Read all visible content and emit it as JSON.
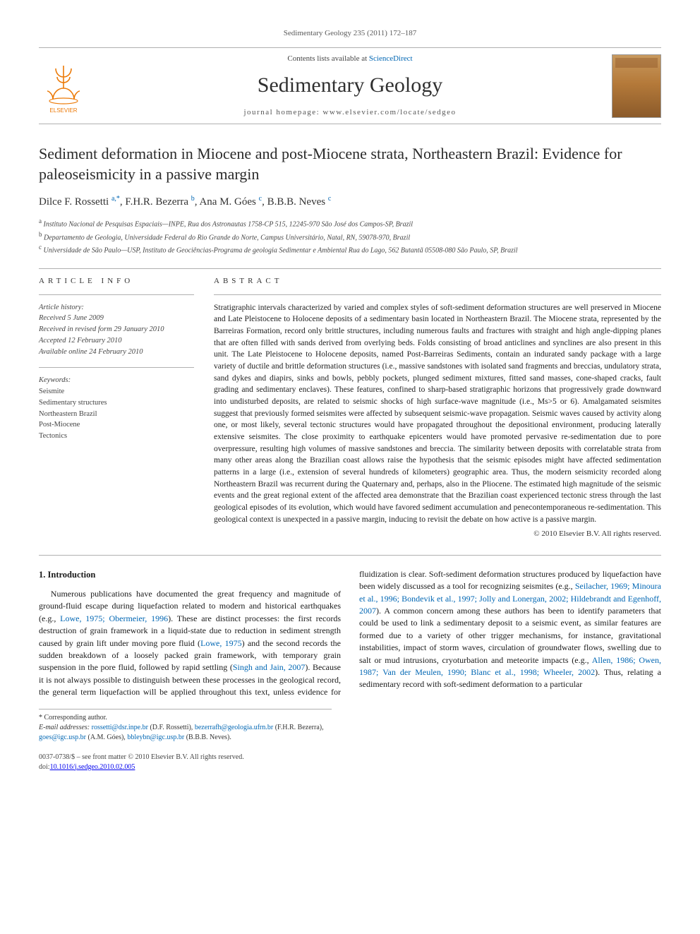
{
  "running_head": "Sedimentary Geology 235 (2011) 172–187",
  "banner": {
    "contents_pre": "Contents lists available at ",
    "contents_link": "ScienceDirect",
    "journal": "Sedimentary Geology",
    "homepage_pre": "journal homepage: ",
    "homepage_url": "www.elsevier.com/locate/sedgeo"
  },
  "title": "Sediment deformation in Miocene and post-Miocene strata, Northeastern Brazil: Evidence for paleoseismicity in a passive margin",
  "authors_html": "Dilce F. Rossetti <span class='sup'>a,</span><span class='sup star'>*</span>, F.H.R. Bezerra <span class='sup'>b</span>, Ana M. Góes <span class='sup'>c</span>, B.B.B. Neves <span class='sup'>c</span>",
  "affiliations": [
    {
      "sup": "a",
      "text": "Instituto Nacional de Pesquisas Espaciais—INPE, Rua dos Astronautas 1758-CP 515, 12245-970 São José dos Campos-SP, Brazil"
    },
    {
      "sup": "b",
      "text": "Departamento de Geologia, Universidade Federal do Rio Grande do Norte, Campus Universitário, Natal, RN, 59078-970, Brazil"
    },
    {
      "sup": "c",
      "text": "Universidade de São Paulo—USP, Instituto de Geociências-Programa de geologia Sedimentar e Ambiental Rua do Lago, 562 Butantã 05508-080 São Paulo, SP, Brazil"
    }
  ],
  "article_info_label": "ARTICLE INFO",
  "abstract_label": "ABSTRACT",
  "history": {
    "hdr": "Article history:",
    "lines": [
      "Received 5 June 2009",
      "Received in revised form 29 January 2010",
      "Accepted 12 February 2010",
      "Available online 24 February 2010"
    ]
  },
  "keywords": {
    "hdr": "Keywords:",
    "items": [
      "Seismite",
      "Sedimentary structures",
      "Northeastern Brazil",
      "Post-Miocene",
      "Tectonics"
    ]
  },
  "abstract": "Stratigraphic intervals characterized by varied and complex styles of soft-sediment deformation structures are well preserved in Miocene and Late Pleistocene to Holocene deposits of a sedimentary basin located in Northeastern Brazil. The Miocene strata, represented by the Barreiras Formation, record only brittle structures, including numerous faults and fractures with straight and high angle-dipping planes that are often filled with sands derived from overlying beds. Folds consisting of broad anticlines and synclines are also present in this unit. The Late Pleistocene to Holocene deposits, named Post-Barreiras Sediments, contain an indurated sandy package with a large variety of ductile and brittle deformation structures (i.e., massive sandstones with isolated sand fragments and breccias, undulatory strata, sand dykes and diapirs, sinks and bowls, pebbly pockets, plunged sediment mixtures, fitted sand masses, cone-shaped cracks, fault grading and sedimentary enclaves). These features, confined to sharp-based stratigraphic horizons that progressively grade downward into undisturbed deposits, are related to seismic shocks of high surface-wave magnitude (i.e., Ms>5 or 6). Amalgamated seismites suggest that previously formed seismites were affected by subsequent seismic-wave propagation. Seismic waves caused by activity along one, or most likely, several tectonic structures would have propagated throughout the depositional environment, producing laterally extensive seismites. The close proximity to earthquake epicenters would have promoted pervasive re-sedimentation due to pore overpressure, resulting high volumes of massive sandstones and breccia. The similarity between deposits with correlatable strata from many other areas along the Brazilian coast allows raise the hypothesis that the seismic episodes might have affected sedimentation patterns in a large (i.e., extension of several hundreds of kilometers) geographic area. Thus, the modern seismicity recorded along Northeastern Brazil was recurrent during the Quaternary and, perhaps, also in the Pliocene. The estimated high magnitude of the seismic events and the great regional extent of the affected area demonstrate that the Brazilian coast experienced tectonic stress through the last geological episodes of its evolution, which would have favored sediment accumulation and penecontemporaneous re-sedimentation. This geological context is unexpected in a passive margin, inducing to revisit the debate on how active is a passive margin.",
  "copyright": "© 2010 Elsevier B.V. All rights reserved.",
  "intro_heading": "1. Introduction",
  "intro_para1_pre": "Numerous publications have documented the great frequency and magnitude of ground-fluid escape during liquefaction related to modern and historical earthquakes (e.g., ",
  "intro_para1_link1": "Lowe, 1975; Obermeier, 1996",
  "intro_para1_mid1": "). These are distinct processes: the first records destruction of grain framework in a liquid-state due to reduction in sediment strength caused by grain lift under moving pore fluid (",
  "intro_para1_link2": "Lowe, 1975",
  "intro_para1_mid2": ") and the second records the sudden breakdown of a loosely packed grain framework, with temporary grain suspension in the pore fluid, followed by rapid settling (",
  "intro_para1_link3": "Singh and Jain, 2007",
  "intro_para1_mid3": "). Because it is not",
  "intro_para1_col2_pre": "always possible to distinguish between these processes in the geological record, the general term liquefaction will be applied throughout this text, unless evidence for fluidization is clear. Soft-sediment deformation structures produced by liquefaction have been widely discussed as a tool for recognizing seismites (e.g., ",
  "intro_para1_col2_link1": "Seilacher, 1969; Minoura et al., 1996; Bondevik et al., 1997; Jolly and Lonergan, 2002; Hildebrandt and Egenhoff, 2007",
  "intro_para1_col2_mid1": "). A common concern among these authors has been to identify parameters that could be used to link a sedimentary deposit to a seismic event, as similar features are formed due to a variety of other trigger mechanisms, for instance, gravitational instabilities, impact of storm waves, circulation of groundwater flows, swelling due to salt or mud intrusions, cryoturbation and meteorite impacts (e.g., ",
  "intro_para1_col2_link2": "Allen, 1986; Owen, 1987; Van der Meulen, 1990; Blanc et al., 1998; Wheeler, 2002",
  "intro_para1_col2_end": "). Thus, relating a sedimentary record with soft-sediment deformation to a particular",
  "footnote": {
    "corr": "* Corresponding author.",
    "email_label": "E-mail addresses:",
    "emails": [
      {
        "addr": "rossetti@dsr.inpe.br",
        "who": "(D.F. Rossetti)"
      },
      {
        "addr": "bezerrafh@geologia.ufrn.br",
        "who": "(F.H.R. Bezerra)"
      },
      {
        "addr": "goes@igc.usp.br",
        "who": "(A.M. Góes)"
      },
      {
        "addr": "bbleybn@igc.usp.br",
        "who": "(B.B.B. Neves)"
      }
    ]
  },
  "footer": {
    "issn": "0037-0738/$ – see front matter © 2010 Elsevier B.V. All rights reserved.",
    "doi_pre": "doi:",
    "doi": "10.1016/j.sedgeo.2010.02.005"
  },
  "colors": {
    "link": "#0066b3",
    "rule": "#b0b0b0",
    "text": "#1a1a1a",
    "muted": "#5a5a5a",
    "cover_grad_top": "#c8995e",
    "cover_grad_bot": "#8b5a2a",
    "elsevier_orange": "#ec7a08"
  },
  "typography": {
    "body_pt": 12,
    "abstract_pt": 11.5,
    "title_pt": 22,
    "journal_pt": 30,
    "small_pt": 10
  }
}
